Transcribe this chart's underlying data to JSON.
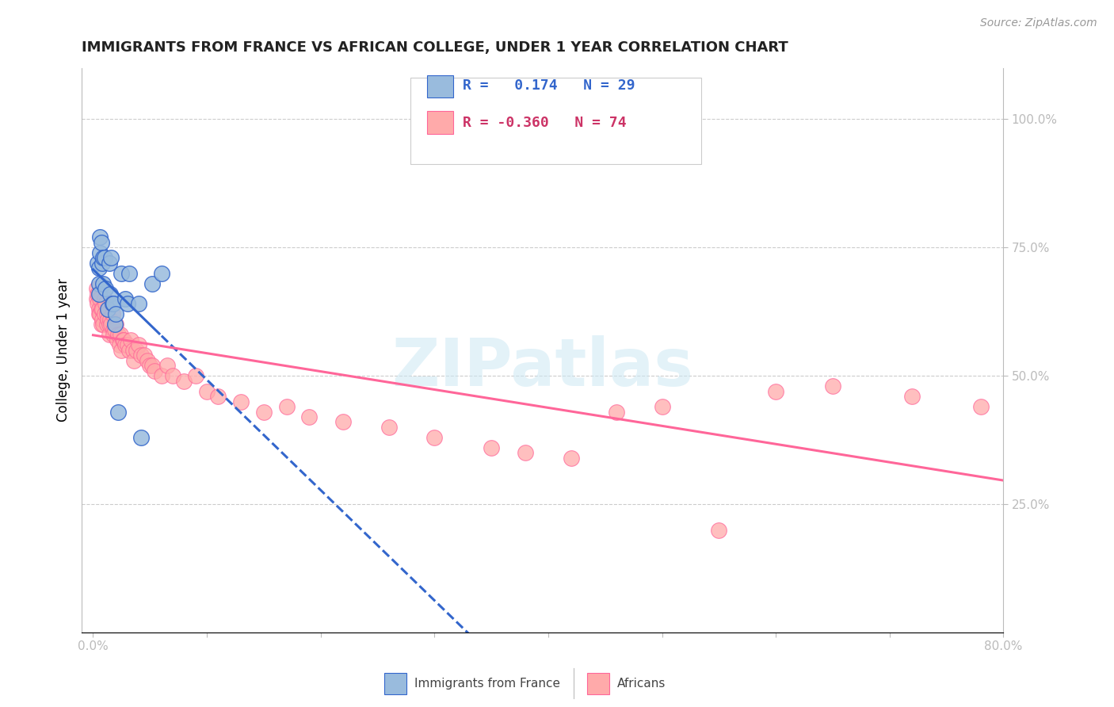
{
  "title": "IMMIGRANTS FROM FRANCE VS AFRICAN COLLEGE, UNDER 1 YEAR CORRELATION CHART",
  "source": "Source: ZipAtlas.com",
  "ylabel": "College, Under 1 year",
  "right_yticks": [
    "100.0%",
    "75.0%",
    "50.0%",
    "25.0%"
  ],
  "right_ytick_vals": [
    1.0,
    0.75,
    0.5,
    0.25
  ],
  "legend_label1": "Immigrants from France",
  "legend_label2": "Africans",
  "legend_R1": "R =   0.174",
  "legend_N1": "N = 29",
  "legend_R2": "R = -0.360",
  "legend_N2": "N = 74",
  "blue_color": "#99BBDD",
  "pink_color": "#FFAAAA",
  "blue_line_color": "#3366CC",
  "pink_line_color": "#FF6699",
  "watermark": "ZIPatlas",
  "blue_scatter_x": [
    0.004,
    0.005,
    0.005,
    0.005,
    0.006,
    0.006,
    0.007,
    0.008,
    0.009,
    0.009,
    0.01,
    0.011,
    0.013,
    0.014,
    0.015,
    0.016,
    0.017,
    0.018,
    0.019,
    0.02,
    0.022,
    0.025,
    0.028,
    0.03,
    0.032,
    0.04,
    0.042,
    0.052,
    0.06
  ],
  "blue_scatter_y": [
    0.72,
    0.71,
    0.68,
    0.66,
    0.77,
    0.74,
    0.76,
    0.72,
    0.73,
    0.68,
    0.73,
    0.67,
    0.63,
    0.72,
    0.66,
    0.73,
    0.64,
    0.64,
    0.6,
    0.62,
    0.43,
    0.7,
    0.65,
    0.64,
    0.7,
    0.64,
    0.38,
    0.68,
    0.7
  ],
  "pink_scatter_x": [
    0.003,
    0.003,
    0.004,
    0.004,
    0.005,
    0.005,
    0.005,
    0.006,
    0.006,
    0.007,
    0.007,
    0.008,
    0.008,
    0.009,
    0.01,
    0.01,
    0.011,
    0.012,
    0.012,
    0.013,
    0.014,
    0.014,
    0.015,
    0.016,
    0.017,
    0.018,
    0.018,
    0.019,
    0.02,
    0.021,
    0.022,
    0.023,
    0.024,
    0.025,
    0.026,
    0.027,
    0.028,
    0.03,
    0.032,
    0.033,
    0.035,
    0.036,
    0.038,
    0.04,
    0.042,
    0.045,
    0.048,
    0.05,
    0.052,
    0.054,
    0.06,
    0.065,
    0.07,
    0.08,
    0.09,
    0.1,
    0.11,
    0.13,
    0.15,
    0.17,
    0.19,
    0.22,
    0.26,
    0.3,
    0.35,
    0.38,
    0.42,
    0.46,
    0.5,
    0.55,
    0.6,
    0.65,
    0.72,
    0.78
  ],
  "pink_scatter_y": [
    0.67,
    0.65,
    0.66,
    0.64,
    0.66,
    0.63,
    0.62,
    0.65,
    0.62,
    0.63,
    0.6,
    0.63,
    0.61,
    0.6,
    0.65,
    0.62,
    0.64,
    0.62,
    0.6,
    0.61,
    0.58,
    0.6,
    0.61,
    0.6,
    0.62,
    0.59,
    0.58,
    0.59,
    0.6,
    0.57,
    0.58,
    0.56,
    0.58,
    0.55,
    0.57,
    0.57,
    0.56,
    0.56,
    0.55,
    0.57,
    0.55,
    0.53,
    0.55,
    0.56,
    0.54,
    0.54,
    0.53,
    0.52,
    0.52,
    0.51,
    0.5,
    0.52,
    0.5,
    0.49,
    0.5,
    0.47,
    0.46,
    0.45,
    0.43,
    0.44,
    0.42,
    0.41,
    0.4,
    0.38,
    0.36,
    0.35,
    0.34,
    0.43,
    0.44,
    0.2,
    0.47,
    0.48,
    0.46,
    0.44
  ]
}
